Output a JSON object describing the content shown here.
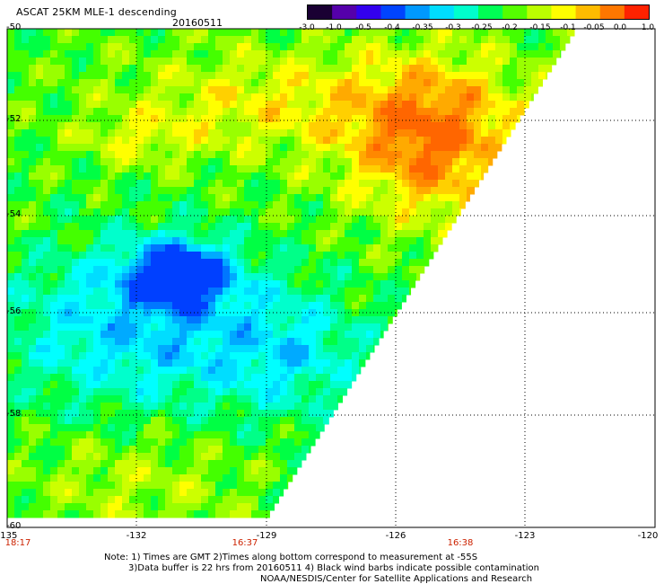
{
  "header": {
    "title": "ASCAT 25KM MLE-1 descending",
    "date": "20160511"
  },
  "colorbar": {
    "labels": [
      "-3.0",
      "-1.0",
      "-0.5",
      "-0.4",
      "-0.35",
      "-0.3",
      "-0.25",
      "-0.2",
      "-0.15",
      "-0.1",
      "-0.05",
      "0.0",
      "1.0"
    ],
    "colors": [
      "#1a0033",
      "#5500aa",
      "#3300ee",
      "#0044ff",
      "#0099ff",
      "#00ddff",
      "#00ffcc",
      "#00ff55",
      "#55ff00",
      "#bbff00",
      "#ffff00",
      "#ffbb00",
      "#ff7700",
      "#ff2200"
    ]
  },
  "axes": {
    "lat_labels": [
      "-50",
      "-52",
      "-54",
      "-56",
      "-58",
      "-60"
    ],
    "lon_labels": [
      "-135",
      "-132",
      "-129",
      "-126",
      "-123",
      "-120"
    ],
    "time_labels": [
      "18:17",
      "16:37",
      "16:38"
    ]
  },
  "footer": {
    "line1": "Note: 1) Times are GMT 2)Times along bottom correspond to measurement at -55S",
    "line2": "3)Data buffer is 22 hrs from 20160511 4) Black wind barbs indicate possible contamination",
    "line3": "NOAA/NESDIS/Center for Satellite Applications and Research"
  }
}
